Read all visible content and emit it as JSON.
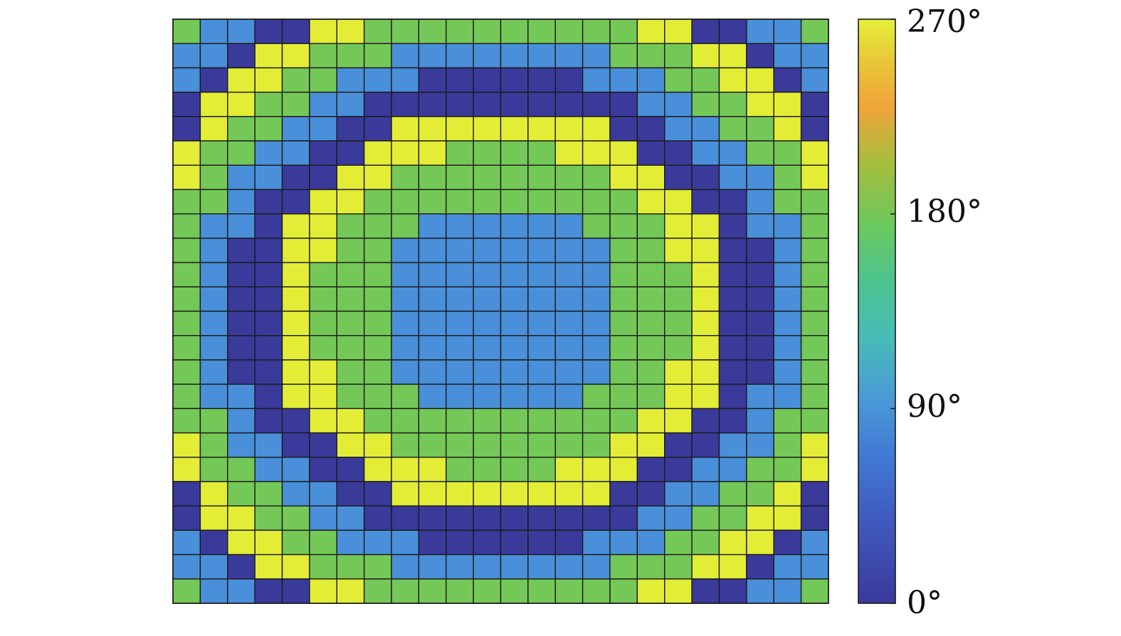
{
  "chart_data": {
    "type": "heatmap",
    "title": "",
    "xlabel": "",
    "ylabel": "",
    "grid": true,
    "rows": 24,
    "cols": 24,
    "value_map": {
      "0": 0,
      "1": 90,
      "2": 180,
      "3": 270
    },
    "palette": {
      "0": "#3a3a9b",
      "1": "#4a8fd9",
      "2": "#74c857",
      "3": "#e4ed36"
    },
    "colorbar": {
      "range": [
        0,
        270
      ],
      "ticks": [
        0,
        90,
        180,
        270
      ],
      "tick_labels": [
        "0°",
        "90°",
        "180°",
        "270°"
      ]
    },
    "values": [
      [
        2,
        1,
        1,
        0,
        0,
        3,
        3,
        2,
        2,
        2,
        2,
        2,
        2,
        2,
        2,
        2,
        2,
        3,
        3,
        0,
        0,
        1,
        1,
        2
      ],
      [
        1,
        1,
        0,
        3,
        3,
        2,
        2,
        2,
        1,
        1,
        1,
        1,
        1,
        1,
        1,
        1,
        2,
        2,
        2,
        3,
        3,
        0,
        1,
        1
      ],
      [
        1,
        0,
        3,
        3,
        2,
        2,
        1,
        1,
        1,
        0,
        0,
        0,
        0,
        0,
        0,
        1,
        1,
        1,
        2,
        2,
        3,
        3,
        0,
        1
      ],
      [
        0,
        3,
        3,
        2,
        2,
        1,
        1,
        0,
        0,
        0,
        0,
        0,
        0,
        0,
        0,
        0,
        0,
        1,
        1,
        2,
        2,
        3,
        3,
        0
      ],
      [
        0,
        3,
        2,
        2,
        1,
        1,
        0,
        0,
        3,
        3,
        3,
        3,
        3,
        3,
        3,
        3,
        0,
        0,
        1,
        1,
        2,
        2,
        3,
        0
      ],
      [
        3,
        2,
        2,
        1,
        1,
        0,
        0,
        3,
        3,
        3,
        2,
        2,
        2,
        2,
        3,
        3,
        3,
        0,
        0,
        1,
        1,
        2,
        2,
        3
      ],
      [
        3,
        2,
        1,
        1,
        0,
        0,
        3,
        3,
        2,
        2,
        2,
        2,
        2,
        2,
        2,
        2,
        3,
        3,
        0,
        0,
        1,
        1,
        2,
        3
      ],
      [
        2,
        2,
        1,
        0,
        0,
        3,
        3,
        2,
        2,
        2,
        2,
        2,
        2,
        2,
        2,
        2,
        2,
        3,
        3,
        0,
        0,
        1,
        2,
        2
      ],
      [
        2,
        1,
        1,
        0,
        3,
        3,
        2,
        2,
        2,
        1,
        1,
        1,
        1,
        1,
        1,
        2,
        2,
        2,
        3,
        3,
        0,
        1,
        1,
        2
      ],
      [
        2,
        1,
        0,
        0,
        3,
        3,
        2,
        2,
        1,
        1,
        1,
        1,
        1,
        1,
        1,
        1,
        2,
        2,
        3,
        3,
        0,
        0,
        1,
        2
      ],
      [
        2,
        1,
        0,
        0,
        3,
        2,
        2,
        2,
        1,
        1,
        1,
        1,
        1,
        1,
        1,
        1,
        2,
        2,
        2,
        3,
        0,
        0,
        1,
        2
      ],
      [
        2,
        1,
        0,
        0,
        3,
        2,
        2,
        2,
        1,
        1,
        1,
        1,
        1,
        1,
        1,
        1,
        2,
        2,
        2,
        3,
        0,
        0,
        1,
        2
      ],
      [
        2,
        1,
        0,
        0,
        3,
        2,
        2,
        2,
        1,
        1,
        1,
        1,
        1,
        1,
        1,
        1,
        2,
        2,
        2,
        3,
        0,
        0,
        1,
        2
      ],
      [
        2,
        1,
        0,
        0,
        3,
        2,
        2,
        2,
        1,
        1,
        1,
        1,
        1,
        1,
        1,
        1,
        2,
        2,
        2,
        3,
        0,
        0,
        1,
        2
      ],
      [
        2,
        1,
        0,
        0,
        3,
        3,
        2,
        2,
        1,
        1,
        1,
        1,
        1,
        1,
        1,
        1,
        2,
        2,
        3,
        3,
        0,
        0,
        1,
        2
      ],
      [
        2,
        1,
        1,
        0,
        3,
        3,
        2,
        2,
        2,
        1,
        1,
        1,
        1,
        1,
        1,
        2,
        2,
        2,
        3,
        3,
        0,
        1,
        1,
        2
      ],
      [
        2,
        2,
        1,
        0,
        0,
        3,
        3,
        2,
        2,
        2,
        2,
        2,
        2,
        2,
        2,
        2,
        2,
        3,
        3,
        0,
        0,
        1,
        2,
        2
      ],
      [
        3,
        2,
        1,
        1,
        0,
        0,
        3,
        3,
        2,
        2,
        2,
        2,
        2,
        2,
        2,
        2,
        3,
        3,
        0,
        0,
        1,
        1,
        2,
        3
      ],
      [
        3,
        2,
        2,
        1,
        1,
        0,
        0,
        3,
        3,
        3,
        2,
        2,
        2,
        2,
        3,
        3,
        3,
        0,
        0,
        1,
        1,
        2,
        2,
        3
      ],
      [
        0,
        3,
        2,
        2,
        1,
        1,
        0,
        0,
        3,
        3,
        3,
        3,
        3,
        3,
        3,
        3,
        0,
        0,
        1,
        1,
        2,
        2,
        3,
        0
      ],
      [
        0,
        3,
        3,
        2,
        2,
        1,
        1,
        0,
        0,
        0,
        0,
        0,
        0,
        0,
        0,
        0,
        0,
        1,
        1,
        2,
        2,
        3,
        3,
        0
      ],
      [
        1,
        0,
        3,
        3,
        2,
        2,
        1,
        1,
        1,
        0,
        0,
        0,
        0,
        0,
        0,
        1,
        1,
        1,
        2,
        2,
        3,
        3,
        0,
        1
      ],
      [
        1,
        1,
        0,
        3,
        3,
        2,
        2,
        2,
        1,
        1,
        1,
        1,
        1,
        1,
        1,
        1,
        2,
        2,
        2,
        3,
        3,
        0,
        1,
        1
      ],
      [
        2,
        1,
        1,
        0,
        0,
        3,
        3,
        2,
        2,
        2,
        2,
        2,
        2,
        2,
        2,
        2,
        2,
        3,
        3,
        0,
        0,
        1,
        1,
        2
      ]
    ]
  }
}
